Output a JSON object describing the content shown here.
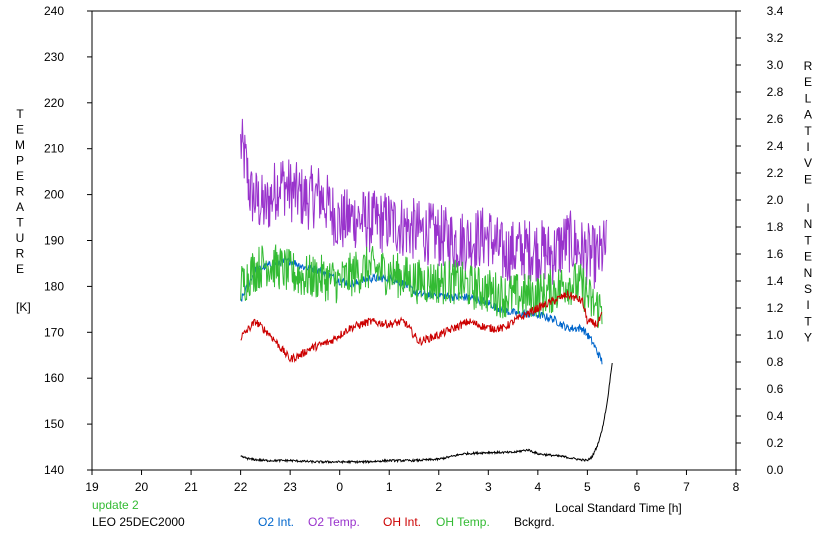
{
  "chart_data": {
    "type": "line",
    "x_axis": {
      "label": "Local Standard Time [h]",
      "range": [
        19,
        32
      ],
      "ticks": [
        19,
        20,
        21,
        22,
        23,
        24,
        25,
        26,
        27,
        28,
        29,
        30,
        31,
        32
      ],
      "tick_labels": [
        "19",
        "20",
        "21",
        "22",
        "23",
        "0",
        "1",
        "2",
        "3",
        "4",
        "5",
        "6",
        "7",
        "8"
      ]
    },
    "y_left": {
      "label_letters": [
        "T",
        "E",
        "M",
        "P",
        "E",
        "R",
        "A",
        "T",
        "U",
        "R",
        "E"
      ],
      "unit": "[K]",
      "range": [
        140,
        240
      ],
      "ticks": [
        140,
        150,
        160,
        170,
        180,
        190,
        200,
        210,
        220,
        230,
        240
      ]
    },
    "y_right": {
      "label_word1": [
        "R",
        "E",
        "L",
        "A",
        "T",
        "I",
        "V",
        "E"
      ],
      "label_word2": [
        "I",
        "N",
        "T",
        "E",
        "N",
        "S",
        "I",
        "T",
        "Y"
      ],
      "range": [
        0.0,
        3.4
      ],
      "ticks": [
        "0.0",
        "0.2",
        "0.4",
        "0.6",
        "0.8",
        "1.0",
        "1.2",
        "1.4",
        "1.6",
        "1.8",
        "2.0",
        "2.2",
        "2.4",
        "2.6",
        "2.8",
        "3.0",
        "3.2",
        "3.4"
      ]
    },
    "grid": false,
    "annotations": {
      "update": "update 2",
      "station_date": "LEO 25DEC2000"
    },
    "legend": [
      "O2 Int.",
      "O2 Temp.",
      "OH Int.",
      "OH Temp.",
      "Bckgrd."
    ],
    "series": [
      {
        "name": "O2 Temp.",
        "axis": "left",
        "color": "#9933cc",
        "noise": 7,
        "x": [
          22.0,
          22.1,
          22.2,
          22.5,
          22.8,
          23.0,
          23.3,
          23.6,
          24.0,
          24.3,
          24.6,
          25.0,
          25.3,
          25.6,
          26.0,
          26.3,
          26.6,
          27.0,
          27.3,
          27.6,
          28.0,
          28.3,
          28.6,
          29.0,
          29.2,
          29.4
        ],
        "y": [
          211,
          207,
          200,
          197,
          203,
          201,
          199,
          200,
          194,
          195,
          194,
          194,
          193,
          192,
          191,
          190,
          190,
          191,
          187,
          188,
          188,
          187,
          190,
          187,
          186,
          189
        ]
      },
      {
        "name": "O2 Int.",
        "axis": "right",
        "color": "#0066cc",
        "noise": 0.03,
        "x": [
          22.0,
          22.1,
          22.3,
          22.6,
          23.0,
          23.3,
          23.6,
          24.0,
          24.3,
          24.6,
          25.0,
          25.3,
          25.6,
          26.0,
          26.3,
          26.6,
          27.0,
          27.3,
          27.6,
          28.0,
          28.3,
          28.6,
          28.9,
          29.1,
          29.3
        ],
        "y": [
          1.25,
          1.33,
          1.48,
          1.52,
          1.55,
          1.5,
          1.48,
          1.4,
          1.38,
          1.42,
          1.42,
          1.38,
          1.3,
          1.3,
          1.28,
          1.28,
          1.24,
          1.18,
          1.16,
          1.15,
          1.12,
          1.05,
          1.05,
          0.95,
          0.8
        ]
      },
      {
        "name": "OH Temp.",
        "axis": "left",
        "color": "#33bb33",
        "noise": 5,
        "x": [
          22.0,
          22.2,
          22.5,
          22.8,
          23.0,
          23.3,
          23.6,
          24.0,
          24.3,
          24.6,
          25.0,
          25.3,
          25.6,
          26.0,
          26.3,
          26.6,
          27.0,
          27.3,
          27.6,
          28.0,
          28.3,
          28.6,
          28.9,
          29.1,
          29.3
        ],
        "y": [
          180,
          183,
          185,
          184,
          183,
          182,
          182,
          181,
          183,
          184,
          183,
          182,
          181,
          181,
          181,
          180,
          179,
          178,
          178,
          178,
          179,
          181,
          180,
          176,
          175
        ]
      },
      {
        "name": "OH Int.",
        "axis": "right",
        "color": "#cc0000",
        "noise": 0.03,
        "x": [
          22.0,
          22.3,
          22.6,
          23.0,
          23.2,
          23.4,
          23.8,
          24.2,
          24.6,
          25.0,
          25.3,
          25.6,
          26.0,
          26.3,
          26.6,
          27.0,
          27.3,
          27.6,
          28.0,
          28.3,
          28.6,
          28.9,
          29.0,
          29.2,
          29.3
        ],
        "y": [
          0.98,
          1.1,
          1.0,
          0.82,
          0.85,
          0.9,
          0.95,
          1.05,
          1.1,
          1.08,
          1.1,
          0.95,
          1.0,
          1.05,
          1.1,
          1.05,
          1.05,
          1.12,
          1.2,
          1.25,
          1.3,
          1.25,
          1.1,
          1.08,
          1.15
        ]
      },
      {
        "name": "Bckgrd.",
        "axis": "right",
        "color": "#000000",
        "noise": 0.008,
        "x": [
          22.0,
          22.2,
          22.5,
          23.0,
          23.5,
          24.0,
          24.5,
          25.0,
          25.5,
          26.0,
          26.5,
          27.0,
          27.5,
          27.8,
          28.0,
          28.5,
          28.8,
          29.0,
          29.1,
          29.2,
          29.3,
          29.4,
          29.45,
          29.5
        ],
        "y": [
          0.1,
          0.08,
          0.07,
          0.07,
          0.06,
          0.06,
          0.06,
          0.07,
          0.07,
          0.08,
          0.12,
          0.13,
          0.13,
          0.15,
          0.12,
          0.1,
          0.08,
          0.07,
          0.1,
          0.18,
          0.3,
          0.5,
          0.65,
          0.8
        ]
      }
    ]
  }
}
